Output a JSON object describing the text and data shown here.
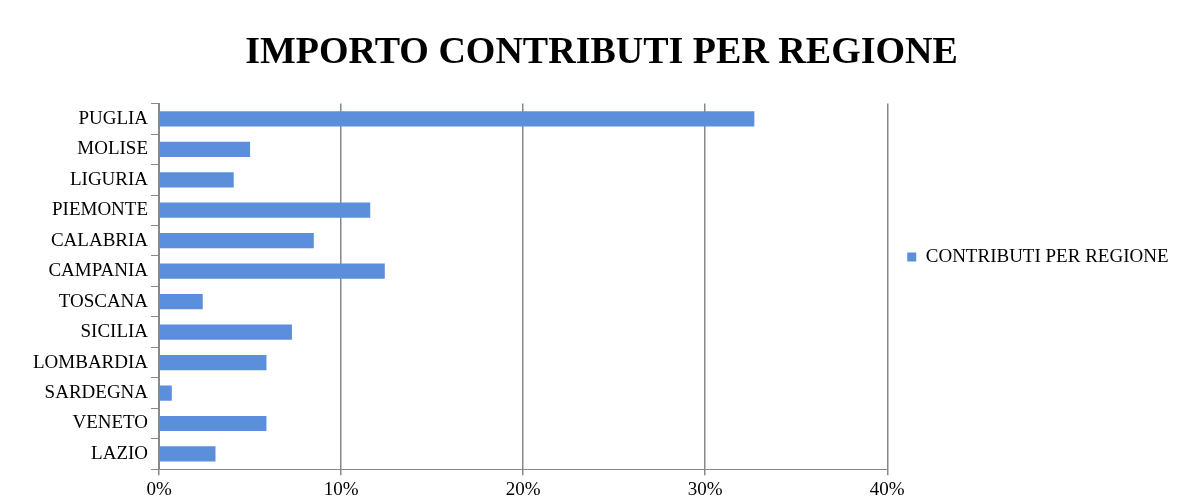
{
  "chart_data": {
    "type": "bar",
    "orientation": "horizontal",
    "title": "IMPORTO CONTRIBUTI PER REGIONE",
    "categories": [
      "PUGLIA",
      "MOLISE",
      "LIGURIA",
      "PIEMONTE",
      "CALABRIA",
      "CAMPANIA",
      "TOSCANA",
      "SICILIA",
      "LOMBARDIA",
      "SARDEGNA",
      "VENETO",
      "LAZIO"
    ],
    "series": [
      {
        "name": "CONTRIBUTI PER REGIONE",
        "color": "#5b8fdc",
        "values": [
          32.7,
          5.0,
          4.1,
          11.6,
          8.5,
          12.4,
          2.4,
          7.3,
          5.9,
          0.7,
          5.9,
          3.1
        ]
      }
    ],
    "xlim": [
      0,
      40
    ],
    "xticks": [
      {
        "value": 0,
        "label": "0%"
      },
      {
        "value": 10,
        "label": "10%"
      },
      {
        "value": 20,
        "label": "20%"
      },
      {
        "value": 30,
        "label": "30%"
      },
      {
        "value": 40,
        "label": "40%"
      }
    ],
    "grid": "x",
    "legend": "right"
  }
}
